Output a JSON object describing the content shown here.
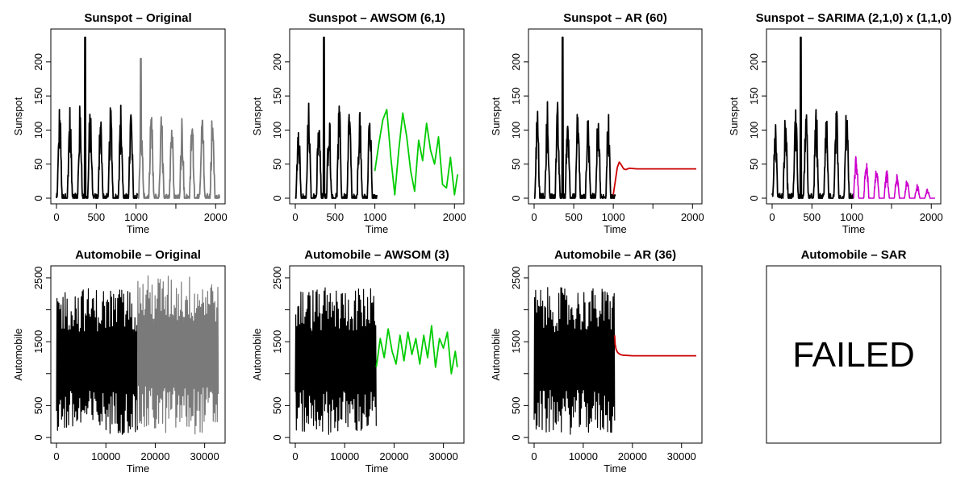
{
  "colors": {
    "history": "#000000",
    "original_future": "#7a7a7a",
    "awsom": "#00cc00",
    "ar": "#cc0000",
    "sarima": "#cc00cc"
  },
  "chart_data": [
    {
      "id": "sun_orig",
      "type": "line",
      "title": "Sunspot  – Original",
      "xlabel": "Time",
      "ylabel": "Sunspot",
      "xlim": [
        0,
        2048
      ],
      "ylim": [
        0,
        240
      ],
      "xticks": [
        0,
        500,
        1000,
        1500,
        2000
      ],
      "xtick_labels": [
        "0",
        "500",
        "1000",
        "",
        "2000"
      ],
      "yticks": [
        0,
        50,
        100,
        150,
        200
      ],
      "ytick_labels": [
        "0",
        "50",
        "100",
        "150",
        "200"
      ],
      "series": [
        {
          "role": "history",
          "color": "#000000",
          "kind": "sunspot",
          "x_start": 0,
          "x_end": 1024
        },
        {
          "role": "original_future",
          "color": "#7a7a7a",
          "kind": "sunspot",
          "x_start": 1024,
          "x_end": 2048
        }
      ]
    },
    {
      "id": "sun_awsom",
      "type": "line",
      "title": "Sunspot – AWSOM (6,1)",
      "xlabel": "Time",
      "ylabel": "Sunspot",
      "xlim": [
        0,
        2048
      ],
      "ylim": [
        0,
        240
      ],
      "xticks": [
        0,
        500,
        1000,
        1500,
        2000
      ],
      "xtick_labels": [
        "0",
        "500",
        "1000",
        "",
        "2000"
      ],
      "yticks": [
        0,
        50,
        100,
        150,
        200
      ],
      "ytick_labels": [
        "0",
        "50",
        "100",
        "150",
        "200"
      ],
      "series": [
        {
          "role": "history",
          "color": "#000000",
          "kind": "sunspot",
          "x_start": 0,
          "x_end": 1024
        },
        {
          "role": "forecast",
          "color": "#00cc00",
          "kind": "points",
          "x": [
            1000,
            1050,
            1100,
            1150,
            1200,
            1250,
            1300,
            1350,
            1400,
            1450,
            1500,
            1550,
            1600,
            1650,
            1700,
            1750,
            1800,
            1850,
            1900,
            1950,
            2000,
            2040
          ],
          "y": [
            40,
            80,
            115,
            130,
            60,
            5,
            70,
            125,
            90,
            40,
            10,
            85,
            55,
            110,
            70,
            50,
            90,
            20,
            15,
            60,
            5,
            35
          ]
        }
      ]
    },
    {
      "id": "sun_ar",
      "type": "line",
      "title": "Sunspot – AR (60)",
      "xlabel": "Time",
      "ylabel": "Sunspot",
      "xlim": [
        0,
        2048
      ],
      "ylim": [
        0,
        240
      ],
      "xticks": [
        0,
        500,
        1000,
        1500,
        2000
      ],
      "xtick_labels": [
        "0",
        "500",
        "1000",
        "",
        "2000"
      ],
      "yticks": [
        0,
        50,
        100,
        150,
        200
      ],
      "ytick_labels": [
        "0",
        "50",
        "100",
        "150",
        "200"
      ],
      "series": [
        {
          "role": "history",
          "color": "#000000",
          "kind": "sunspot",
          "x_start": 0,
          "x_end": 1024
        },
        {
          "role": "forecast",
          "color": "#cc0000",
          "kind": "points",
          "x": [
            1000,
            1025,
            1050,
            1075,
            1100,
            1130,
            1160,
            1200,
            1300,
            1500,
            2048
          ],
          "y": [
            5,
            25,
            45,
            53,
            49,
            43,
            42,
            44,
            43,
            43,
            43
          ]
        }
      ]
    },
    {
      "id": "sun_sarima",
      "type": "line",
      "title": "Sunspot – SARIMA (2,1,0) x (1,1,0)",
      "xlabel": "Time",
      "ylabel": "Sunspot",
      "xlim": [
        0,
        2048
      ],
      "ylim": [
        0,
        240
      ],
      "xticks": [
        0,
        500,
        1000,
        1500,
        2000
      ],
      "xtick_labels": [
        "0",
        "500",
        "1000",
        "",
        "2000"
      ],
      "yticks": [
        0,
        50,
        100,
        150,
        200
      ],
      "ytick_labels": [
        "0",
        "50",
        "100",
        "150",
        "200"
      ],
      "series": [
        {
          "role": "history",
          "color": "#000000",
          "kind": "sunspot",
          "x_start": 0,
          "x_end": 1024
        },
        {
          "role": "forecast",
          "color": "#cc00cc",
          "kind": "damped",
          "x_start": 1024,
          "x_end": 2048,
          "y_max_start": 65,
          "y_max_end": 8
        }
      ]
    },
    {
      "id": "auto_orig",
      "type": "area",
      "title": "Automobile  – Original",
      "xlabel": "Time",
      "ylabel": "Automobile",
      "xlim": [
        0,
        33000
      ],
      "ylim": [
        0,
        2600
      ],
      "xticks": [
        0,
        10000,
        20000,
        30000
      ],
      "xtick_labels": [
        "0",
        "10000",
        "20000",
        "30000"
      ],
      "yticks": [
        0,
        500,
        1000,
        1500,
        2000,
        2500
      ],
      "ytick_labels": [
        "0",
        "500",
        "",
        "1500",
        "",
        "2500"
      ],
      "series": [
        {
          "role": "history",
          "color": "#000000",
          "kind": "band",
          "x_start": 0,
          "x_end": 16384,
          "y_low": 0,
          "y_high": 2350
        },
        {
          "role": "original_future",
          "color": "#7a7a7a",
          "kind": "band",
          "x_start": 16384,
          "x_end": 32768,
          "y_low": 0,
          "y_high": 2550
        }
      ]
    },
    {
      "id": "auto_awsom",
      "type": "line",
      "title": "Automobile – AWSOM (3)",
      "xlabel": "Time",
      "ylabel": "Automobile",
      "xlim": [
        0,
        33000
      ],
      "ylim": [
        0,
        2600
      ],
      "xticks": [
        0,
        10000,
        20000,
        30000
      ],
      "xtick_labels": [
        "0",
        "10000",
        "20000",
        "30000"
      ],
      "yticks": [
        0,
        500,
        1000,
        1500,
        2000,
        2500
      ],
      "ytick_labels": [
        "0",
        "500",
        "",
        "1500",
        "",
        "2500"
      ],
      "series": [
        {
          "role": "history",
          "color": "#000000",
          "kind": "band",
          "x_start": 0,
          "x_end": 16384,
          "y_low": 0,
          "y_high": 2350
        },
        {
          "role": "forecast",
          "color": "#00cc00",
          "kind": "points",
          "x": [
            16400,
            17200,
            18000,
            18800,
            19600,
            20400,
            21200,
            22000,
            22800,
            23600,
            24400,
            25200,
            26000,
            26800,
            27600,
            28400,
            29200,
            30000,
            30800,
            31600,
            32400,
            32800
          ],
          "y": [
            1100,
            1550,
            1250,
            1700,
            1350,
            1150,
            1600,
            1200,
            1650,
            1300,
            1550,
            1150,
            1600,
            1250,
            1750,
            1100,
            1550,
            1400,
            1650,
            1000,
            1350,
            1100
          ]
        }
      ]
    },
    {
      "id": "auto_ar",
      "type": "line",
      "title": "Automobile – AR (36)",
      "xlabel": "Time",
      "ylabel": "Automobile",
      "xlim": [
        0,
        33000
      ],
      "ylim": [
        0,
        2600
      ],
      "xticks": [
        0,
        10000,
        20000,
        30000
      ],
      "xtick_labels": [
        "0",
        "10000",
        "20000",
        "30000"
      ],
      "yticks": [
        0,
        500,
        1000,
        1500,
        2000,
        2500
      ],
      "ytick_labels": [
        "0",
        "500",
        "",
        "1500",
        "",
        "2500"
      ],
      "series": [
        {
          "role": "history",
          "color": "#000000",
          "kind": "band",
          "x_start": 0,
          "x_end": 16384,
          "y_low": 0,
          "y_high": 2350
        },
        {
          "role": "forecast",
          "color": "#cc0000",
          "kind": "points",
          "x": [
            16384,
            16500,
            16700,
            17000,
            17500,
            18000,
            19000,
            20000,
            25000,
            33000
          ],
          "y": [
            1600,
            1450,
            1380,
            1330,
            1300,
            1290,
            1285,
            1280,
            1280,
            1280
          ]
        }
      ]
    },
    {
      "id": "auto_sar",
      "type": "text",
      "title": "Automobile – SAR",
      "message": "FAILED"
    }
  ]
}
